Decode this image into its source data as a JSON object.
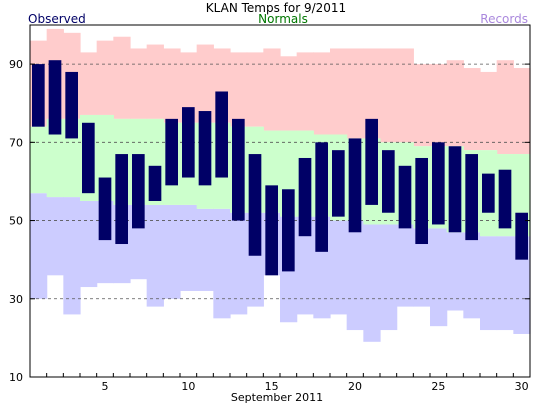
{
  "chart_data": {
    "type": "bar",
    "title": "KLAN Temps for 9/2011",
    "xlabel": "September 2011",
    "legend": [
      {
        "name": "Observed",
        "color": "#000066",
        "position": "top-left"
      },
      {
        "name": "Normals",
        "color": "#007700",
        "position": "top-center"
      },
      {
        "name": "Records",
        "color": "#aa88dd",
        "position": "top-right"
      }
    ],
    "colors": {
      "observed": "#000066",
      "normals": "#ccffcc",
      "records_high": "#ffcccc",
      "records_low": "#ccccff"
    },
    "ylim": [
      10,
      100
    ],
    "y_ticks": [
      10,
      30,
      50,
      70,
      90
    ],
    "x_ticks": [
      5,
      10,
      15,
      20,
      25,
      30
    ],
    "grid": "dashed at y = 30, 50, 70, 90",
    "days": [
      1,
      2,
      3,
      4,
      5,
      6,
      7,
      8,
      9,
      10,
      11,
      12,
      13,
      14,
      15,
      16,
      17,
      18,
      19,
      20,
      21,
      22,
      23,
      24,
      25,
      26,
      27,
      28,
      29,
      30
    ],
    "series": [
      {
        "name": "Observed",
        "kind": "range",
        "high": [
          90,
          91,
          88,
          75,
          61,
          67,
          67,
          64,
          76,
          79,
          78,
          83,
          76,
          67,
          59,
          58,
          66,
          70,
          68,
          71,
          76,
          68,
          64,
          66,
          70,
          69,
          67,
          62,
          63,
          52
        ],
        "low": [
          74,
          72,
          71,
          57,
          45,
          44,
          48,
          55,
          59,
          61,
          59,
          61,
          50,
          41,
          36,
          37,
          46,
          42,
          51,
          47,
          54,
          52,
          48,
          44,
          49,
          47,
          45,
          52,
          48,
          40
        ]
      },
      {
        "name": "Normals",
        "kind": "range",
        "high": [
          74,
          76,
          76,
          77,
          77,
          76,
          76,
          76,
          75,
          75,
          75,
          75,
          74,
          74,
          73,
          73,
          73,
          72,
          72,
          71,
          71,
          70,
          70,
          69,
          69,
          69,
          68,
          68,
          67,
          67
        ],
        "low": [
          57,
          56,
          56,
          55,
          55,
          54,
          54,
          54,
          54,
          54,
          53,
          53,
          52,
          52,
          52,
          51,
          51,
          51,
          50,
          50,
          49,
          49,
          49,
          48,
          48,
          47,
          47,
          46,
          46,
          46
        ]
      },
      {
        "name": "Records",
        "kind": "range",
        "high": [
          96,
          99,
          98,
          93,
          96,
          97,
          94,
          95,
          94,
          93,
          95,
          94,
          93,
          93,
          94,
          92,
          93,
          93,
          94,
          94,
          94,
          94,
          94,
          90,
          90,
          91,
          89,
          88,
          91,
          89
        ],
        "low": [
          30,
          36,
          26,
          33,
          34,
          34,
          35,
          28,
          30,
          32,
          32,
          25,
          26,
          28,
          36,
          24,
          26,
          25,
          26,
          22,
          19,
          22,
          28,
          28,
          23,
          27,
          25,
          22,
          22,
          21
        ]
      }
    ]
  }
}
